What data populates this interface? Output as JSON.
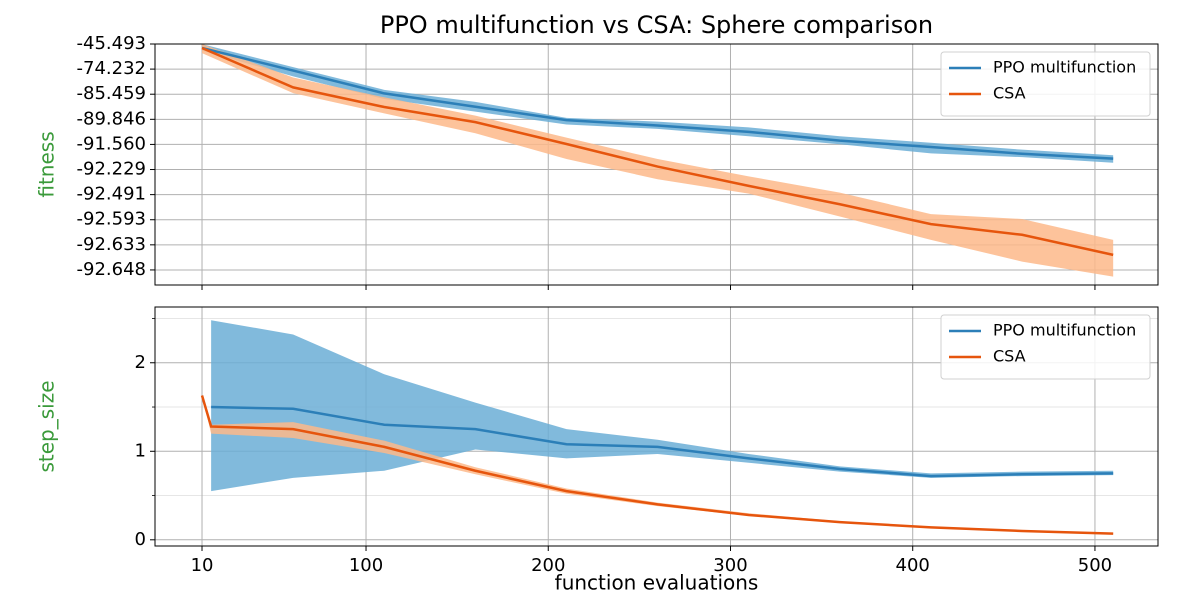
{
  "chart_data": [
    {
      "type": "line",
      "title": "PPO multifunction vs CSA: Sphere comparison",
      "ylabel": "fitness",
      "ylabel_color": "#3a9a3a",
      "yscale": "tick-spaced",
      "grid": true,
      "legend": "upper right",
      "show_xtick_labels": false,
      "x": [
        10,
        60,
        110,
        160,
        210,
        260,
        310,
        360,
        410,
        460,
        510
      ],
      "xlim": [
        -15.8,
        534.6
      ],
      "xticks": [
        10,
        100,
        200,
        300,
        400,
        500
      ],
      "ylim": [
        -92.657,
        -45.493
      ],
      "yticks": [
        -45.493,
        -74.232,
        -85.459,
        -89.846,
        {
          "value": -91.56,
          "label": "-91.560"
        },
        -92.229,
        -92.491,
        -92.593,
        -92.633,
        -92.648
      ],
      "series": [
        {
          "name": "PPO multifunction",
          "color": "#2c7fb8",
          "band_color": "#6baed6",
          "values": [
            -50.09,
            -74.9,
            -85.1,
            -87.65,
            -89.9,
            -90.27,
            -90.7,
            -91.3,
            -91.63,
            -91.81,
            -91.94
          ],
          "lower": [
            -53.0,
            -77.5,
            -86.3,
            -88.5,
            -90.2,
            -90.5,
            -91.0,
            -91.55,
            -91.8,
            -91.9,
            -92.05
          ],
          "upper": [
            -45.6,
            -72.0,
            -83.5,
            -86.8,
            -89.6,
            -90.0,
            -90.4,
            -91.0,
            -91.45,
            -91.7,
            -91.85
          ]
        },
        {
          "name": "CSA",
          "color": "#e6550d",
          "band_color": "#fdb88a",
          "values": [
            -50.1,
            -82.4,
            -87.7,
            -90.04,
            -91.53,
            -92.15,
            -92.4,
            -92.53,
            -92.6,
            -92.617,
            -92.639
          ],
          "lower": [
            -56.0,
            -85.0,
            -88.8,
            -90.8,
            -91.95,
            -92.33,
            -92.48,
            -92.58,
            -92.625,
            -92.643,
            -92.652
          ],
          "upper": [
            -45.5,
            -78.0,
            -86.0,
            -89.2,
            -91.1,
            -91.95,
            -92.3,
            -92.47,
            -92.57,
            -92.59,
            -92.625
          ]
        }
      ]
    },
    {
      "type": "line",
      "ylabel": "step_size",
      "ylabel_color": "#3a9a3a",
      "xlabel": "function evaluations",
      "grid": true,
      "legend": "upper right",
      "show_xtick_labels": true,
      "x": [
        10,
        15,
        60,
        110,
        160,
        210,
        260,
        310,
        360,
        410,
        460,
        510
      ],
      "xlim": [
        -15.8,
        534.6
      ],
      "xticks": [
        10,
        100,
        200,
        300,
        400,
        500
      ],
      "ylim": [
        -0.07,
        2.63
      ],
      "yticks": [
        0,
        1,
        2
      ],
      "yminorticks": [
        0.5,
        1.5,
        2.5
      ],
      "series": [
        {
          "name": "PPO multifunction",
          "color": "#2c7fb8",
          "band_color": "#6baed6",
          "values": [
            null,
            1.5,
            1.48,
            1.3,
            1.25,
            1.08,
            1.05,
            0.92,
            0.8,
            0.72,
            0.74,
            0.75
          ],
          "lower": [
            null,
            0.55,
            0.7,
            0.78,
            1.02,
            0.92,
            0.97,
            0.87,
            0.77,
            0.7,
            0.72,
            0.73
          ],
          "upper": [
            null,
            2.48,
            2.32,
            1.87,
            1.55,
            1.25,
            1.13,
            0.97,
            0.83,
            0.75,
            0.77,
            0.78
          ]
        },
        {
          "name": "CSA",
          "color": "#e6550d",
          "band_color": "#fdb88a",
          "values": [
            1.63,
            1.28,
            1.25,
            1.05,
            0.78,
            0.55,
            0.4,
            0.28,
            0.2,
            0.14,
            0.1,
            0.07
          ],
          "lower": [
            1.63,
            1.2,
            1.15,
            0.98,
            0.74,
            0.52,
            0.38,
            0.27,
            0.19,
            0.13,
            0.09,
            0.06
          ],
          "upper": [
            1.63,
            1.3,
            1.33,
            1.12,
            0.82,
            0.58,
            0.42,
            0.3,
            0.21,
            0.15,
            0.11,
            0.08
          ]
        }
      ]
    }
  ]
}
